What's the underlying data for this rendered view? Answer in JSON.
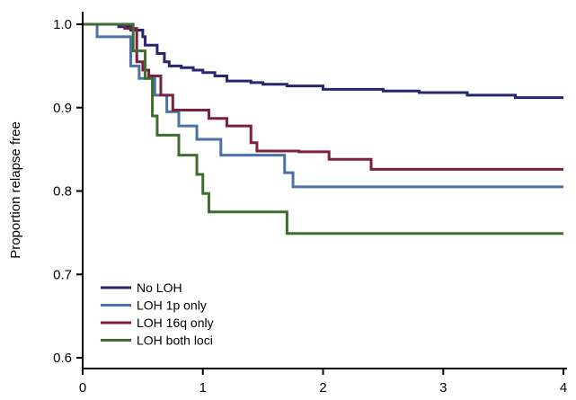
{
  "chart_data": {
    "type": "line",
    "step": true,
    "ylabel": "Proportion relapse free",
    "xlabel": "",
    "xlim": [
      0,
      4
    ],
    "ylim": [
      0.6,
      1.0
    ],
    "x_ticks": [
      0,
      1,
      2,
      3,
      4
    ],
    "x_tick_labels": [
      "0",
      "1",
      "2",
      "3",
      "4"
    ],
    "y_ticks": [
      0.6,
      0.7,
      0.8,
      0.9,
      1.0
    ],
    "y_tick_labels": [
      "0.6",
      "0.7",
      "0.8",
      "0.9",
      "1.0"
    ],
    "grid": false,
    "legend_position": "bottom-left",
    "series": [
      {
        "name": "No LOH",
        "color": "#27266e",
        "points": [
          [
            0,
            1.0
          ],
          [
            0.3,
            0.997
          ],
          [
            0.4,
            0.993
          ],
          [
            0.5,
            0.985
          ],
          [
            0.52,
            0.975
          ],
          [
            0.62,
            0.965
          ],
          [
            0.68,
            0.955
          ],
          [
            0.72,
            0.95
          ],
          [
            0.82,
            0.948
          ],
          [
            0.92,
            0.945
          ],
          [
            1.0,
            0.942
          ],
          [
            1.1,
            0.938
          ],
          [
            1.2,
            0.932
          ],
          [
            1.4,
            0.93
          ],
          [
            1.5,
            0.928
          ],
          [
            1.7,
            0.926
          ],
          [
            2.0,
            0.922
          ],
          [
            2.5,
            0.92
          ],
          [
            2.8,
            0.918
          ],
          [
            3.2,
            0.915
          ],
          [
            3.6,
            0.912
          ],
          [
            4.0,
            0.912
          ]
        ]
      },
      {
        "name": "LOH 1p only",
        "color": "#4a72a8",
        "points": [
          [
            0,
            1.0
          ],
          [
            0.12,
            0.985
          ],
          [
            0.4,
            0.95
          ],
          [
            0.47,
            0.935
          ],
          [
            0.6,
            0.915
          ],
          [
            0.7,
            0.895
          ],
          [
            0.8,
            0.878
          ],
          [
            0.95,
            0.862
          ],
          [
            1.15,
            0.843
          ],
          [
            1.68,
            0.822
          ],
          [
            1.75,
            0.805
          ],
          [
            4.0,
            0.805
          ]
        ]
      },
      {
        "name": "LOH 16q only",
        "color": "#7c1f40",
        "points": [
          [
            0,
            1.0
          ],
          [
            0.35,
            0.995
          ],
          [
            0.45,
            0.955
          ],
          [
            0.5,
            0.945
          ],
          [
            0.55,
            0.938
          ],
          [
            0.65,
            0.915
          ],
          [
            0.75,
            0.897
          ],
          [
            1.05,
            0.887
          ],
          [
            1.2,
            0.878
          ],
          [
            1.4,
            0.858
          ],
          [
            1.45,
            0.848
          ],
          [
            1.8,
            0.847
          ],
          [
            2.05,
            0.838
          ],
          [
            2.4,
            0.826
          ],
          [
            4.0,
            0.826
          ]
        ]
      },
      {
        "name": "LOH both loci",
        "color": "#3d6e2e",
        "points": [
          [
            0,
            1.0
          ],
          [
            0.42,
            0.968
          ],
          [
            0.52,
            0.935
          ],
          [
            0.58,
            0.89
          ],
          [
            0.62,
            0.867
          ],
          [
            0.8,
            0.843
          ],
          [
            0.95,
            0.82
          ],
          [
            1.0,
            0.797
          ],
          [
            1.05,
            0.775
          ],
          [
            1.7,
            0.749
          ],
          [
            4.0,
            0.749
          ]
        ]
      }
    ]
  }
}
